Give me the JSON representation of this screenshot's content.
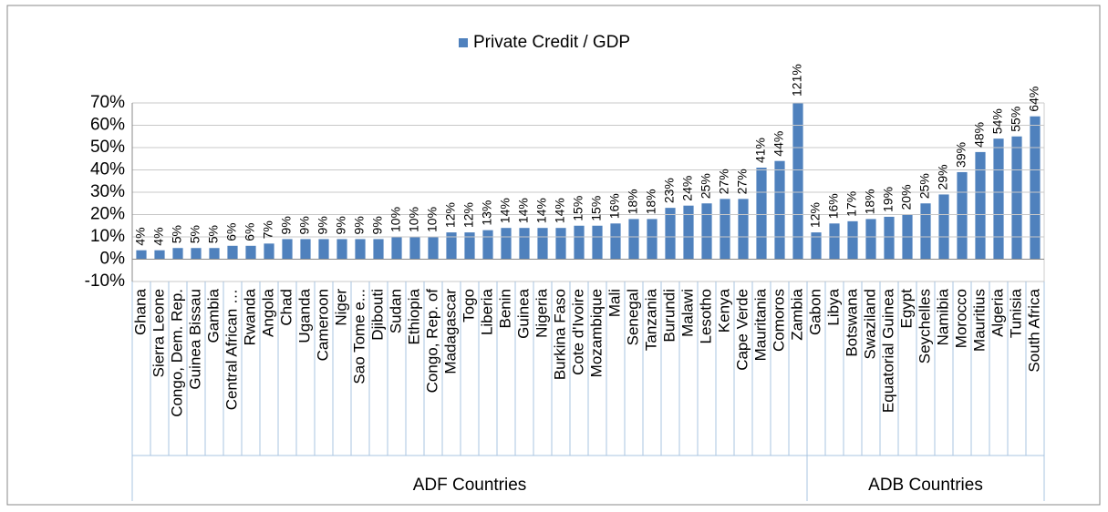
{
  "chart_data": {
    "type": "bar",
    "groups": [
      {
        "name": "ADF Countries",
        "categories": [
          "Ghana",
          "Sierra Leone",
          "Congo, Dem. Rep.",
          "Guinea Bissau",
          "Gambia",
          "Central African …",
          "Rwanda",
          "Angola",
          "Chad",
          "Uganda",
          "Cameroon",
          "Niger",
          "Sao Tome e...",
          "Djibouti",
          "Sudan",
          "Ethiopia",
          "Congo, Rep. of",
          "Madagascar",
          "Togo",
          "Liberia",
          "Benin",
          "Guinea",
          "Nigeria",
          "Burkina Faso",
          "Cote d'Ivoire",
          "Mozambique",
          "Mali",
          "Senegal",
          "Tanzania",
          "Burundi",
          "Malawi",
          "Lesotho",
          "Kenya",
          "Cape Verde",
          "Mauritania",
          "Comoros",
          "Zambia"
        ]
      },
      {
        "name": "ADB Countries",
        "categories": [
          "Gabon",
          "Libya",
          "Botswana",
          "Swaziland",
          "Equatorial Guinea",
          "Egypt",
          "Seychelles",
          "Namibia",
          "Morocco",
          "Mauritius",
          "Algeria",
          "Tunisia",
          "South Africa"
        ]
      }
    ],
    "series": [
      {
        "name": "Private Credit / GDP",
        "color": "#4f81bd",
        "values": [
          4,
          4,
          5,
          5,
          5,
          6,
          6,
          7,
          9,
          9,
          9,
          9,
          9,
          9,
          10,
          10,
          10,
          12,
          12,
          13,
          14,
          14,
          14,
          14,
          15,
          15,
          16,
          18,
          18,
          23,
          24,
          25,
          27,
          27,
          41,
          44,
          121,
          12,
          16,
          17,
          18,
          19,
          20,
          25,
          29,
          39,
          48,
          54,
          55,
          64
        ],
        "value_labels": [
          "4%",
          "4%",
          "5%",
          "5%",
          "5%",
          "6%",
          "6%",
          "7%",
          "9%",
          "9%",
          "9%",
          "9%",
          "9%",
          "9%",
          "10%",
          "10%",
          "10%",
          "12%",
          "12%",
          "13%",
          "14%",
          "14%",
          "14%",
          "14%",
          "15%",
          "15%",
          "16%",
          "18%",
          "18%",
          "23%",
          "24%",
          "25%",
          "27%",
          "27%",
          "41%",
          "44%",
          "121%",
          "12%",
          "16%",
          "17%",
          "18%",
          "19%",
          "20%",
          "25%",
          "29%",
          "39%",
          "48%",
          "54%",
          "55%",
          "64%"
        ]
      }
    ],
    "ylim": [
      -10,
      70
    ],
    "yticks": [
      {
        "value": -10,
        "label": "-10%"
      },
      {
        "value": 0,
        "label": "0%"
      },
      {
        "value": 10,
        "label": "10%"
      },
      {
        "value": 20,
        "label": "20%"
      },
      {
        "value": 30,
        "label": "30%"
      },
      {
        "value": 40,
        "label": "40%"
      },
      {
        "value": 50,
        "label": "50%"
      },
      {
        "value": 60,
        "label": "60%"
      },
      {
        "value": 70,
        "label": "70%"
      }
    ],
    "grid": true,
    "legend": "top"
  }
}
